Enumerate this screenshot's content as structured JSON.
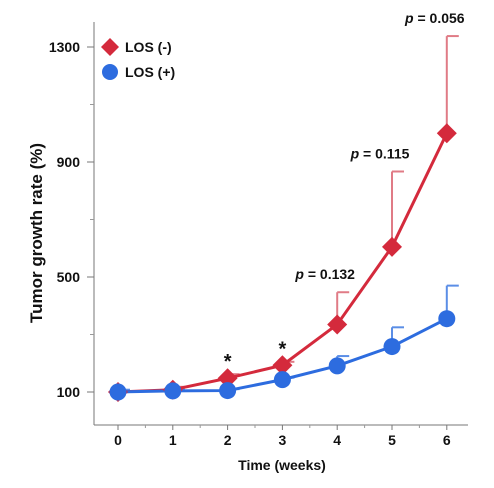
{
  "chart_data": {
    "type": "line",
    "xlabel": "Time (weeks)",
    "ylabel": "Tumor growth rate (%)",
    "x": [
      0,
      1,
      2,
      3,
      4,
      5,
      6
    ],
    "x_ticks": [
      "0",
      "1",
      "2",
      "3",
      "4",
      "5",
      "6"
    ],
    "y_ticks": [
      "100",
      "500",
      "900",
      "1300"
    ],
    "y_minor_ticks": [
      300,
      700,
      1100
    ],
    "xlim": [
      -0.2,
      6.2
    ],
    "ylim": [
      0,
      1400
    ],
    "grid": false,
    "legend_position": "top-left",
    "series": [
      {
        "name": "LOS (-)",
        "marker": "diamond",
        "color": "#d42a3c",
        "values": [
          100,
          108,
          148,
          193,
          335,
          605,
          1000
        ],
        "error_upper": [
          100,
          118,
          162,
          205,
          447,
          867,
          1338
        ]
      },
      {
        "name": "LOS (+)",
        "marker": "circle",
        "color": "#2d6cdf",
        "values": [
          100,
          104,
          105,
          143,
          191,
          258,
          355
        ],
        "error_upper": [
          108,
          112,
          110,
          150,
          225,
          325,
          470
        ]
      }
    ],
    "annotations": [
      {
        "text": "*",
        "x": 2
      },
      {
        "text": "*",
        "x": 3
      },
      {
        "text": "p = 0.132",
        "x": 4,
        "p_label": "p",
        "p_rest": " = 0.132"
      },
      {
        "text": "p = 0.115",
        "x": 5,
        "p_label": "p",
        "p_rest": " = 0.115"
      },
      {
        "text": "p = 0.056",
        "x": 6,
        "p_label": "p",
        "p_rest": " = 0.056"
      }
    ]
  }
}
